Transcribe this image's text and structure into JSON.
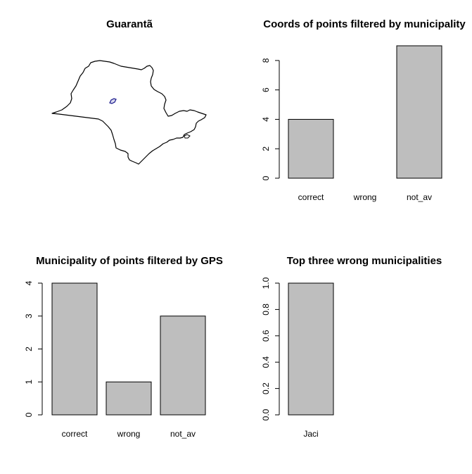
{
  "map_panel": {
    "title": "Guarantã"
  },
  "chart_data": [
    {
      "type": "bar",
      "title": "Coords of points filtered by municipality",
      "categories": [
        "correct",
        "wrong",
        "not_av"
      ],
      "values": [
        4,
        0,
        9
      ],
      "ylim": [
        0,
        9
      ],
      "yticks": [
        "0",
        "2",
        "4",
        "6",
        "8"
      ],
      "xlabel": "",
      "ylabel": ""
    },
    {
      "type": "bar",
      "title": "Municipality of points filtered by GPS",
      "categories": [
        "correct",
        "wrong",
        "not_av"
      ],
      "values": [
        4,
        1,
        3
      ],
      "ylim": [
        0,
        4
      ],
      "yticks": [
        "0",
        "1",
        "2",
        "3",
        "4"
      ],
      "xlabel": "",
      "ylabel": ""
    },
    {
      "type": "bar",
      "title": "Top three wrong municipalities",
      "categories": [
        "Jaci"
      ],
      "values": [
        1
      ],
      "ylim": [
        0,
        1
      ],
      "yticks": [
        "0.0",
        "0.2",
        "0.4",
        "0.6",
        "0.8",
        "1.0"
      ],
      "xlabel": "",
      "ylabel": ""
    }
  ]
}
